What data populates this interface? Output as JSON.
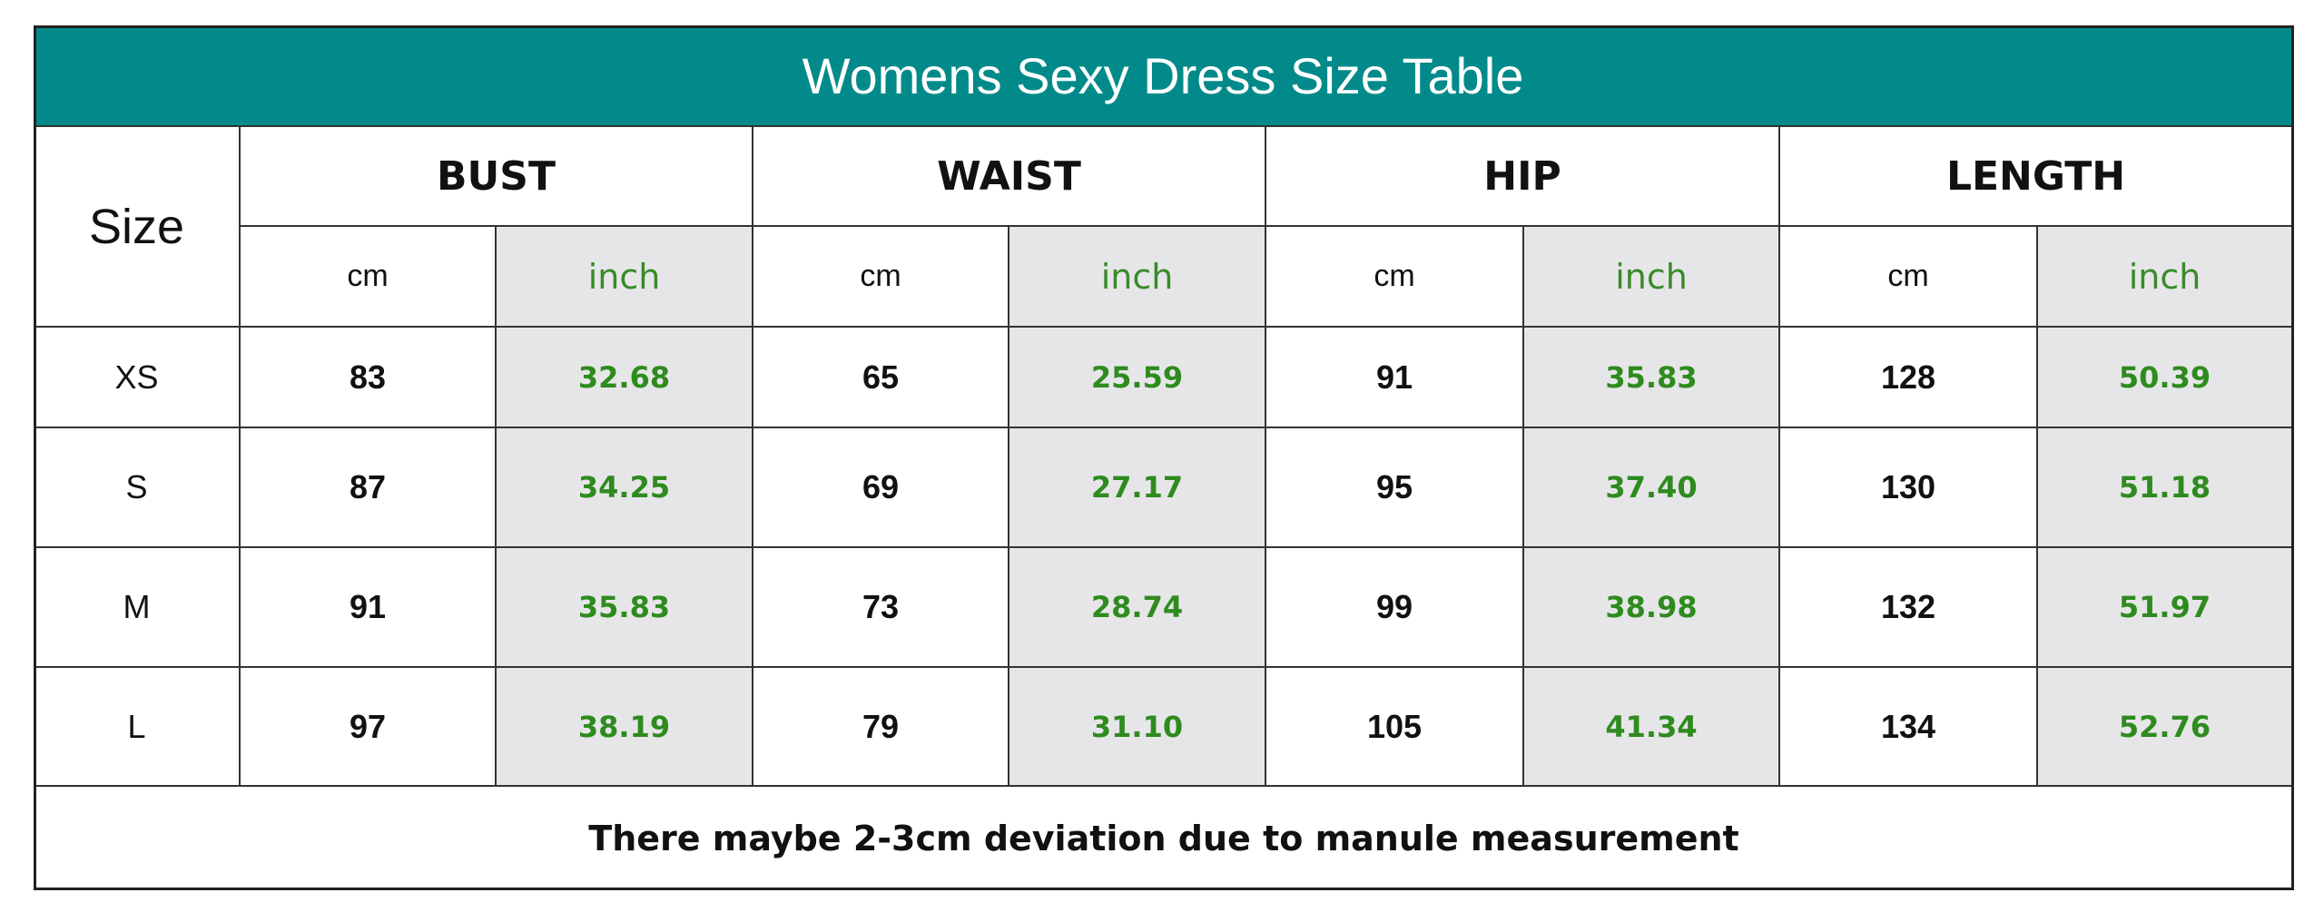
{
  "title": "Womens Sexy Dress  Size  Table",
  "size_header": "Size",
  "groups": [
    {
      "name": "BUST",
      "units": [
        "cm",
        "inch"
      ]
    },
    {
      "name": "WAIST",
      "units": [
        "cm",
        "inch"
      ]
    },
    {
      "name": "HIP",
      "units": [
        "cm",
        "inch"
      ]
    },
    {
      "name": "LENGTH",
      "units": [
        "cm",
        "inch"
      ]
    }
  ],
  "rows": [
    [
      "XS",
      "83",
      "32.68",
      "65",
      "25.59",
      "91",
      "35.83",
      "128",
      "50.39"
    ],
    [
      "S",
      "87",
      "34.25",
      "69",
      "27.17",
      "95",
      "37.40",
      "130",
      "51.18"
    ],
    [
      "M",
      "91",
      "35.83",
      "73",
      "28.74",
      "99",
      "38.98",
      "132",
      "51.97"
    ],
    [
      "L",
      "97",
      "38.19",
      "79",
      "31.10",
      "105",
      "41.34",
      "134",
      "52.76"
    ]
  ],
  "note": "There maybe 2-3cm deviation due to manule measurement"
}
